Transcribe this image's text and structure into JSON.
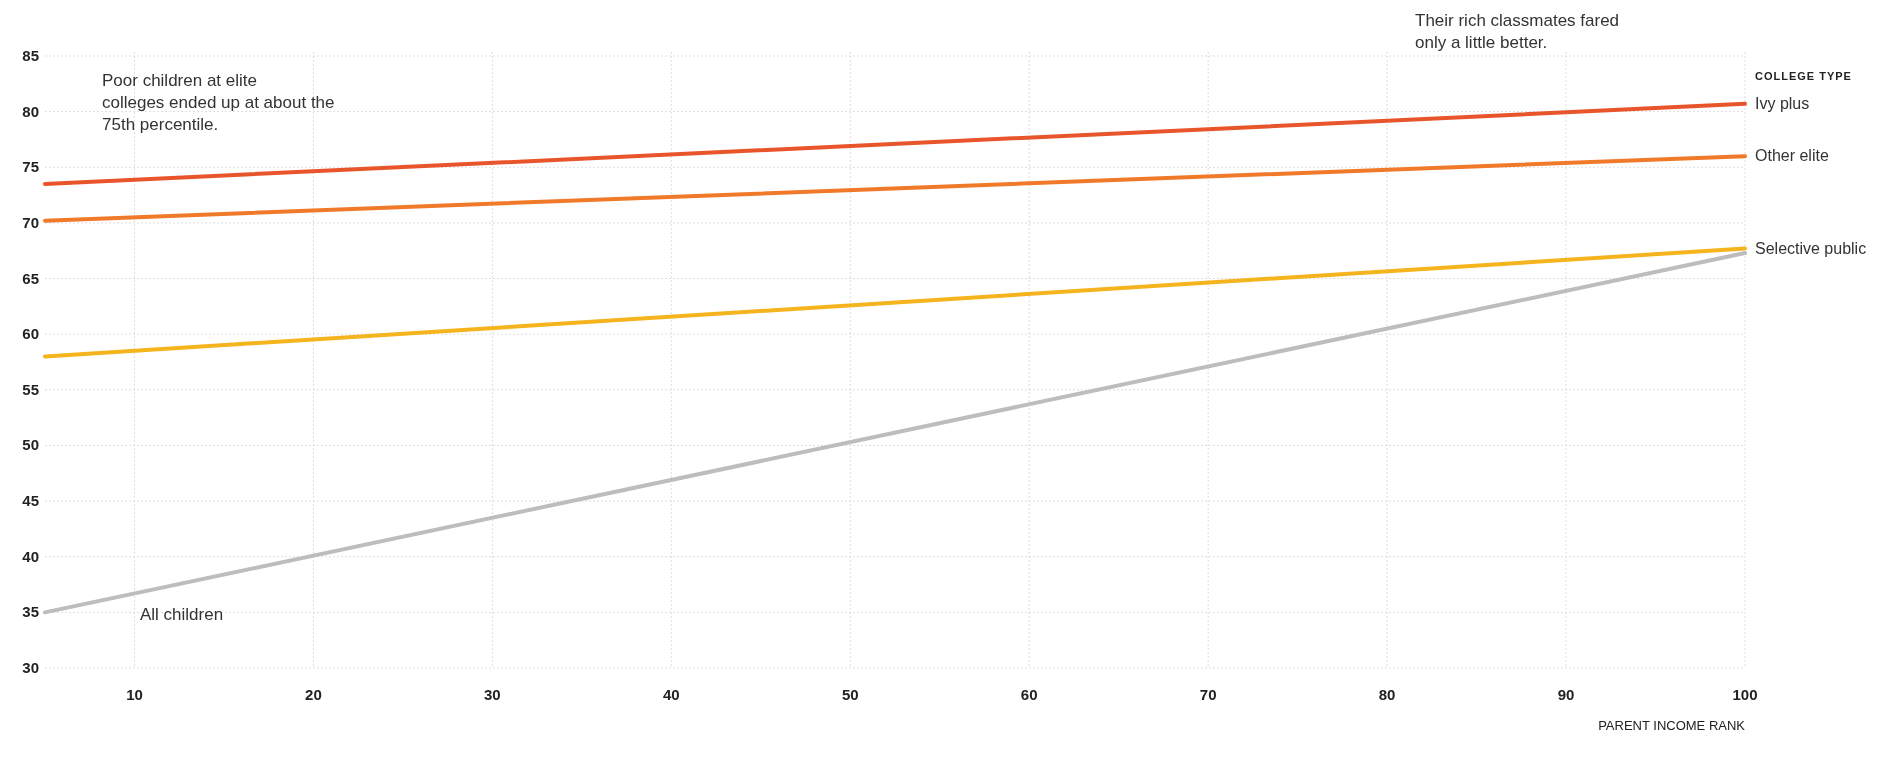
{
  "chart_data": {
    "type": "line",
    "xlabel": "PARENT INCOME RANK",
    "legend_title": "COLLEGE TYPE",
    "x": [
      5,
      100
    ],
    "series": [
      {
        "name": "Ivy plus",
        "color": "#e8552b",
        "values": [
          73.5,
          80.7
        ]
      },
      {
        "name": "Other elite",
        "color": "#f07a2a",
        "values": [
          70.2,
          76
        ]
      },
      {
        "name": "Selective public",
        "color": "#f5b41e",
        "values": [
          58,
          67.7
        ]
      },
      {
        "name": "All children",
        "color": "#bdbdbd",
        "values": [
          35,
          67.3
        ]
      }
    ],
    "xlim": [
      5,
      100
    ],
    "xticks": [
      10,
      20,
      30,
      40,
      50,
      60,
      70,
      80,
      90,
      100
    ],
    "ylim": [
      30,
      85
    ],
    "yticks": [
      30,
      35,
      40,
      45,
      50,
      55,
      60,
      65,
      70,
      75,
      80,
      85
    ],
    "grid": true,
    "marker": "none",
    "line_style": "solid",
    "annotations": [
      "Poor children at elite colleges ended up at about the 75th percentile.",
      "Their rich classmates fared only a little better."
    ]
  }
}
